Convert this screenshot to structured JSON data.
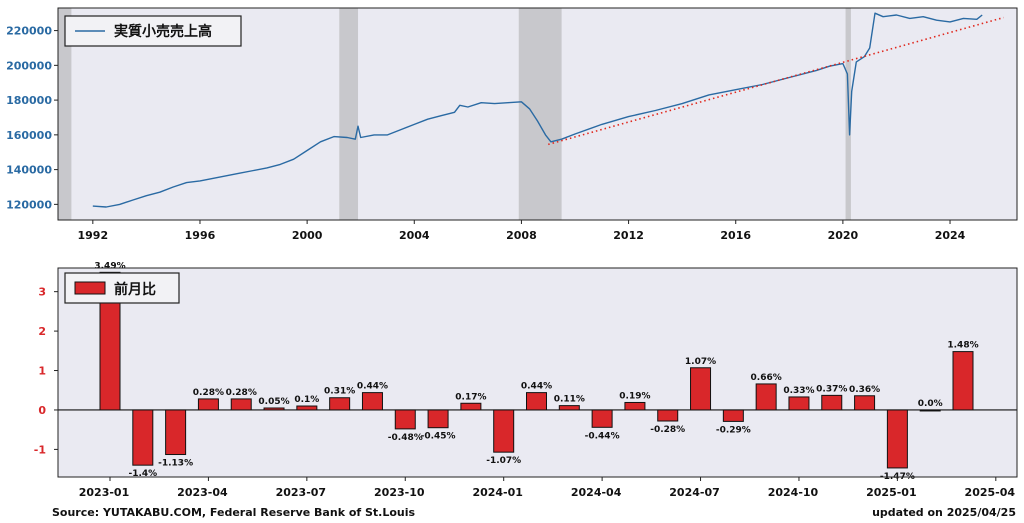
{
  "colors": {
    "panel_bg": "#eaeaf2",
    "line": "#2a6aa3",
    "trend": "#e0281e",
    "bar": "#d9272a",
    "recession": "#c8c8cc",
    "top_tick": "#2a6aa3",
    "bottom_tick": "#d9272a"
  },
  "footer": {
    "source": "Source: YUTAKABU.COM, Federal Reserve Bank of St.Louis",
    "updated": "updated on 2025/04/25"
  },
  "chart_data": [
    {
      "type": "line",
      "legend": [
        "実質小売売上高"
      ],
      "x_ticks": [
        "1992",
        "1996",
        "2000",
        "2004",
        "2008",
        "2012",
        "2016",
        "2020",
        "2024"
      ],
      "y_ticks": [
        "120000",
        "140000",
        "160000",
        "180000",
        "200000",
        "220000"
      ],
      "xlim": [
        1990.7,
        2026.5
      ],
      "ylim": [
        111000,
        233000
      ],
      "recessions": [
        [
          1990.6,
          1991.2
        ],
        [
          2001.2,
          2001.9
        ],
        [
          2007.9,
          2009.5
        ],
        [
          2020.1,
          2020.3
        ]
      ],
      "series": [
        {
          "name": "実質小売売上高",
          "x": [
            1992.0,
            1992.5,
            1993.0,
            1993.5,
            1994.0,
            1994.5,
            1995.0,
            1995.5,
            1996.0,
            1996.5,
            1997.0,
            1997.5,
            1998.0,
            1998.5,
            1999.0,
            1999.5,
            2000.0,
            2000.5,
            2001.0,
            2001.5,
            2001.8,
            2001.9,
            2002.0,
            2002.5,
            2003.0,
            2003.5,
            2004.0,
            2004.5,
            2005.0,
            2005.5,
            2005.7,
            2006.0,
            2006.5,
            2007.0,
            2007.5,
            2008.0,
            2008.3,
            2008.6,
            2008.9,
            2009.1,
            2009.5,
            2010.0,
            2011.0,
            2012.0,
            2013.0,
            2014.0,
            2015.0,
            2016.0,
            2017.0,
            2018.0,
            2019.0,
            2019.5,
            2020.0,
            2020.17,
            2020.25,
            2020.33,
            2020.5,
            2020.8,
            2021.0,
            2021.2,
            2021.5,
            2022.0,
            2022.5,
            2023.0,
            2023.5,
            2024.0,
            2024.5,
            2025.0,
            2025.2
          ],
          "y": [
            119000,
            118500,
            120000,
            122500,
            125000,
            127000,
            130000,
            132500,
            133500,
            135000,
            136500,
            138000,
            139500,
            141000,
            143000,
            146000,
            151000,
            156000,
            159000,
            158500,
            157500,
            165000,
            158500,
            160000,
            160000,
            163000,
            166000,
            169000,
            171000,
            173000,
            177000,
            176000,
            178500,
            178000,
            178500,
            179000,
            175000,
            168000,
            160000,
            156000,
            157500,
            160500,
            166000,
            170500,
            174000,
            178000,
            183000,
            186000,
            189000,
            193000,
            197000,
            199500,
            201000,
            195000,
            160000,
            185000,
            202000,
            205000,
            210000,
            230000,
            228000,
            229000,
            227000,
            228000,
            226000,
            225000,
            227000,
            226500,
            229000
          ]
        },
        {
          "name": "trend",
          "x": [
            2009.0,
            2026.0
          ],
          "y": [
            154500,
            227500
          ]
        }
      ]
    },
    {
      "type": "bar",
      "legend": [
        "前月比"
      ],
      "categories": [
        "2023-01",
        "2023-02",
        "2023-03",
        "2023-04",
        "2023-05",
        "2023-06",
        "2023-07",
        "2023-08",
        "2023-09",
        "2023-10",
        "2023-11",
        "2023-12",
        "2024-01",
        "2024-02",
        "2024-03",
        "2024-04",
        "2024-05",
        "2024-06",
        "2024-07",
        "2024-08",
        "2024-09",
        "2024-10",
        "2024-11",
        "2024-12",
        "2025-01",
        "2025-02",
        "2025-03"
      ],
      "values": [
        3.49,
        -1.4,
        -1.13,
        0.28,
        0.28,
        0.05,
        0.1,
        0.31,
        0.44,
        -0.48,
        -0.45,
        0.17,
        -1.07,
        0.44,
        0.11,
        -0.44,
        0.19,
        -0.28,
        1.07,
        -0.29,
        0.66,
        0.33,
        0.37,
        0.36,
        -1.47,
        0.0,
        1.48
      ],
      "labels": [
        "3.49%",
        "-1.4%",
        "-1.13%",
        "0.28%",
        "0.28%",
        "0.05%",
        "0.1%",
        "0.31%",
        "0.44%",
        "-0.48%",
        "-0.45%",
        "0.17%",
        "-1.07%",
        "0.44%",
        "0.11%",
        "-0.44%",
        "0.19%",
        "-0.28%",
        "1.07%",
        "-0.29%",
        "0.66%",
        "0.33%",
        "0.37%",
        "0.36%",
        "-1.47%",
        "0.0%",
        "1.48%"
      ],
      "x_ticks": [
        "2023-01",
        "2023-04",
        "2023-07",
        "2023-10",
        "2024-01",
        "2024-04",
        "2024-07",
        "2024-10",
        "2025-01",
        "2025-04"
      ],
      "y_ticks": [
        "-1",
        "0",
        "1",
        "2",
        "3"
      ],
      "ylim": [
        -1.7,
        3.6
      ]
    }
  ]
}
